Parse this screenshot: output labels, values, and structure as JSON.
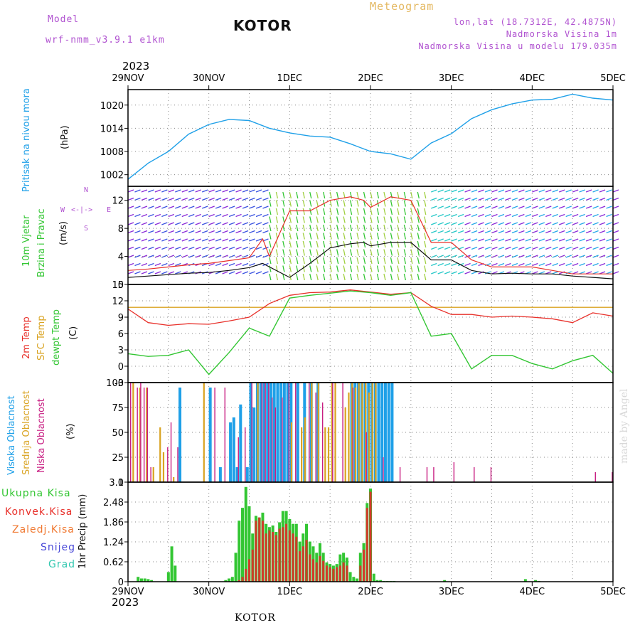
{
  "header": {
    "model_label": "Model",
    "model_name": "wrf-nmm_v3.9.1 e1km",
    "title": "KOTOR",
    "meteogram": "Meteogram",
    "lonlat": "lon,lat (18.7312E, 42.4875N)",
    "elevation": "Nadmorska Visina 1m",
    "model_elevation": "Nadmorska Visina u modelu 179.035m",
    "year_top": "2023",
    "year_bottom": "2023",
    "footer": "KOTOR",
    "credit": "made by Angel"
  },
  "time_axis": {
    "labels": [
      "29NOV",
      "30NOV",
      "1DEC",
      "2DEC",
      "3DEC",
      "4DEC",
      "5DEC"
    ]
  },
  "colors": {
    "pressure": "#1fa0e8",
    "temp2m": "#e8302a",
    "sfc_temp": "#d9a321",
    "dewpoint": "#33c633",
    "high_cloud": "#1fa0e8",
    "mid_cloud": "#d9a321",
    "low_cloud": "#c81e82",
    "precip_total": "#33c633",
    "precip_conv": "#d23a2a",
    "precip_frozen": "#f07830",
    "snow": "#4a4ad8",
    "grad": "#33c8b0",
    "wind_speed": "#111111",
    "wind_gust": "#e8302a"
  },
  "panels": {
    "pressure": {
      "label1": "Pritisak na nivou mora",
      "label2": "(hPa)"
    },
    "wind": {
      "label1": "10m Vjetar",
      "label2": "Brzina i Pravac",
      "label3": "(m/s)",
      "compass_n": "N",
      "compass_s": "S",
      "compass_e": "E",
      "compass_w": "W"
    },
    "temperature": {
      "label1": "2m Temp",
      "label2": "SFC Temp",
      "label3": "dewpt Temp",
      "label4": "(C)"
    },
    "cloud": {
      "label1": "Visoka Oblacnost",
      "label2": "Srednja Oblacnost",
      "label3": "Niska Oblacnost",
      "label4": "(%)"
    },
    "precip": {
      "label1": "Ukupna Kisa",
      "label2": "Konvek.Kisa",
      "label3": "Zaledj.Kisa",
      "label4": "Snijeg",
      "label5": "Grad",
      "label6": "1hr Precip (mm)"
    }
  },
  "chart_data": [
    {
      "type": "line",
      "name": "pressure",
      "x_unit": "hours since 29NOV 00UTC",
      "ylim": [
        999,
        1024
      ],
      "yticks": [
        "1002",
        "1008",
        "1014",
        "1020"
      ],
      "grid": true,
      "x": [
        0,
        6,
        12,
        18,
        24,
        30,
        36,
        42,
        48,
        54,
        60,
        66,
        72,
        78,
        84,
        90,
        96,
        102,
        108,
        114,
        120,
        126,
        132,
        138,
        144
      ],
      "values": [
        1000.8,
        1005.0,
        1008.0,
        1012.5,
        1015.0,
        1016.3,
        1016.0,
        1014.0,
        1012.8,
        1012.0,
        1011.7,
        1010.0,
        1008.0,
        1007.4,
        1006.0,
        1010.2,
        1012.6,
        1016.5,
        1018.8,
        1020.3,
        1021.3,
        1021.5,
        1022.8,
        1021.8,
        1021.3
      ]
    },
    {
      "type": "line",
      "name": "wind",
      "ylim": [
        0,
        14
      ],
      "yticks": [
        "0",
        "4",
        "8",
        "12"
      ],
      "grid": true,
      "series": [
        {
          "name": "speed",
          "x": [
            0,
            6,
            12,
            18,
            24,
            30,
            36,
            40,
            42,
            48,
            54,
            60,
            66,
            70,
            72,
            78,
            84,
            90,
            96,
            102,
            108,
            114,
            120,
            126,
            132,
            138,
            144
          ],
          "values": [
            1.0,
            1.2,
            1.4,
            1.6,
            1.7,
            2.0,
            2.4,
            3.0,
            2.5,
            1.0,
            3.0,
            5.2,
            5.8,
            6.0,
            5.5,
            6.0,
            6.0,
            3.5,
            3.5,
            2.0,
            1.5,
            1.6,
            1.5,
            1.5,
            1.2,
            1.0,
            0.8
          ]
        },
        {
          "name": "gust",
          "x": [
            0,
            6,
            12,
            18,
            24,
            30,
            36,
            40,
            42,
            48,
            54,
            60,
            66,
            70,
            72,
            78,
            84,
            90,
            96,
            102,
            108,
            114,
            120,
            126,
            132,
            138,
            144
          ],
          "values": [
            2.0,
            2.2,
            2.5,
            2.8,
            3.0,
            3.4,
            3.8,
            6.5,
            4.0,
            10.5,
            10.5,
            12.0,
            12.5,
            12.0,
            11.0,
            12.5,
            12.0,
            6.0,
            6.0,
            3.5,
            2.5,
            2.5,
            2.5,
            2.0,
            1.5,
            1.5,
            1.5
          ]
        }
      ]
    },
    {
      "type": "line",
      "name": "temperature",
      "ylim": [
        -3,
        15
      ],
      "yticks": [
        "-3",
        "0",
        "3",
        "6",
        "9",
        "12",
        "15"
      ],
      "grid": true,
      "series": [
        {
          "name": "2m",
          "x": [
            0,
            6,
            12,
            18,
            24,
            30,
            36,
            42,
            48,
            54,
            60,
            66,
            72,
            78,
            84,
            90,
            96,
            102,
            108,
            114,
            120,
            126,
            132,
            138,
            144
          ],
          "values": [
            10.5,
            8.0,
            7.5,
            7.8,
            7.7,
            8.3,
            9.0,
            11.5,
            13.0,
            13.5,
            13.6,
            14.0,
            13.6,
            13.2,
            13.5,
            11.0,
            9.5,
            9.5,
            9.0,
            9.2,
            9.0,
            8.7,
            8.0,
            9.8,
            9.2
          ]
        },
        {
          "name": "sfc",
          "x": [
            0,
            144
          ],
          "values": [
            10.8,
            10.8
          ]
        },
        {
          "name": "dewpt",
          "x": [
            0,
            6,
            12,
            18,
            24,
            30,
            36,
            42,
            48,
            54,
            60,
            66,
            72,
            78,
            84,
            90,
            96,
            102,
            108,
            114,
            120,
            126,
            132,
            138,
            144
          ],
          "values": [
            2.3,
            1.8,
            2.0,
            3.0,
            -1.5,
            2.5,
            7.0,
            5.5,
            12.5,
            13.0,
            13.4,
            13.8,
            13.5,
            13.0,
            13.5,
            5.5,
            6.0,
            -0.5,
            2.0,
            2.0,
            0.5,
            -0.5,
            1.0,
            2.0,
            -1.3
          ]
        }
      ]
    },
    {
      "type": "bar",
      "name": "cloud",
      "ylim": [
        0,
        100
      ],
      "yticks": [
        "0",
        "25",
        "50",
        "75",
        "100"
      ],
      "grid": true,
      "series": [
        {
          "name": "high",
          "x": [
            15,
            24,
            27,
            30,
            31,
            32,
            33,
            35,
            36,
            37,
            38,
            39,
            40,
            41,
            42,
            43,
            44,
            45,
            46,
            47,
            48,
            50,
            52,
            54,
            56,
            66,
            67,
            68,
            69,
            70,
            71,
            72,
            73,
            74,
            75,
            76,
            77,
            78
          ],
          "values": [
            95,
            95,
            15,
            60,
            65,
            15,
            78,
            15,
            100,
            75,
            100,
            100,
            100,
            100,
            100,
            100,
            100,
            100,
            100,
            100,
            100,
            100,
            100,
            100,
            100,
            100,
            100,
            100,
            100,
            100,
            100,
            100,
            100,
            100,
            100,
            100,
            100,
            100
          ]
        },
        {
          "name": "mid",
          "x": [
            1,
            3,
            5,
            7,
            9,
            10,
            13,
            22,
            38,
            48,
            51,
            52,
            54,
            56,
            58,
            59,
            60,
            61,
            64,
            65,
            66,
            67,
            68,
            69,
            70,
            71,
            72,
            73
          ],
          "values": [
            100,
            95,
            95,
            15,
            55,
            30,
            5,
            100,
            100,
            60,
            55,
            65,
            100,
            100,
            55,
            55,
            100,
            100,
            75,
            90,
            100,
            95,
            100,
            100,
            100,
            90,
            100,
            100
          ]
        },
        {
          "name": "low",
          "x": [
            0,
            2,
            3,
            4,
            5,
            6,
            11,
            12,
            14,
            25,
            28,
            32,
            34,
            36,
            39,
            40,
            41,
            42,
            43,
            45,
            47,
            49,
            53,
            55,
            57,
            60,
            63,
            66,
            70,
            75,
            80,
            88,
            90,
            96,
            102,
            107,
            138,
            143
          ],
          "values": [
            100,
            95,
            100,
            95,
            95,
            15,
            35,
            60,
            35,
            95,
            95,
            45,
            55,
            100,
            100,
            100,
            100,
            85,
            75,
            85,
            100,
            100,
            100,
            90,
            80,
            100,
            100,
            95,
            50,
            25,
            15,
            15,
            15,
            20,
            15,
            15,
            10,
            10
          ]
        }
      ]
    },
    {
      "type": "bar",
      "name": "precip",
      "ylim": [
        0,
        3.1
      ],
      "yticks": [
        "0",
        "0.62",
        "1.24",
        "1.86",
        "2.48",
        "3.1"
      ],
      "grid": true,
      "series": [
        {
          "name": "total",
          "x": [
            3,
            4,
            5,
            6,
            7,
            12,
            13,
            14,
            29,
            30,
            31,
            32,
            33,
            34,
            35,
            36,
            37,
            38,
            39,
            40,
            41,
            42,
            43,
            44,
            45,
            46,
            47,
            48,
            49,
            50,
            51,
            52,
            53,
            54,
            55,
            56,
            57,
            58,
            59,
            60,
            61,
            62,
            63,
            64,
            65,
            66,
            67,
            68,
            69,
            70,
            71,
            72,
            73,
            74,
            75,
            76,
            77,
            78,
            79,
            94,
            118,
            121,
            122
          ],
          "values": [
            0.15,
            0.1,
            0.1,
            0.08,
            0.05,
            0.3,
            1.1,
            0.5,
            0.05,
            0.1,
            0.15,
            0.9,
            1.9,
            2.3,
            2.95,
            2.35,
            1.5,
            2.05,
            2.0,
            2.15,
            1.8,
            1.7,
            1.75,
            1.55,
            1.85,
            2.2,
            2.2,
            1.95,
            1.8,
            1.8,
            1.25,
            1.5,
            1.8,
            1.25,
            1.1,
            0.9,
            1.2,
            0.9,
            0.6,
            0.55,
            0.5,
            0.55,
            0.85,
            0.9,
            0.75,
            0.3,
            0.15,
            0.1,
            0.9,
            1.2,
            2.45,
            2.9,
            0.25,
            0.05,
            0.05,
            0.02,
            0.02,
            0.02,
            0.02,
            0.05,
            0.08,
            0.05,
            0.02
          ]
        },
        {
          "name": "convective",
          "x": [
            33,
            34,
            35,
            36,
            37,
            38,
            39,
            40,
            41,
            42,
            43,
            44,
            45,
            46,
            47,
            48,
            49,
            50,
            51,
            52,
            53,
            54,
            55,
            56,
            57,
            58,
            59,
            60,
            61,
            62,
            63,
            64,
            65,
            69,
            70,
            71,
            72
          ],
          "values": [
            0.05,
            0.15,
            0.4,
            0.7,
            1.0,
            1.9,
            2.0,
            1.9,
            1.5,
            1.6,
            1.55,
            1.45,
            1.65,
            1.7,
            1.8,
            1.6,
            1.5,
            1.4,
            0.95,
            1.1,
            1.3,
            0.85,
            0.7,
            0.6,
            0.8,
            0.65,
            0.5,
            0.45,
            0.4,
            0.45,
            0.5,
            0.6,
            0.5,
            0.5,
            1.0,
            2.3,
            2.8
          ]
        }
      ]
    }
  ]
}
